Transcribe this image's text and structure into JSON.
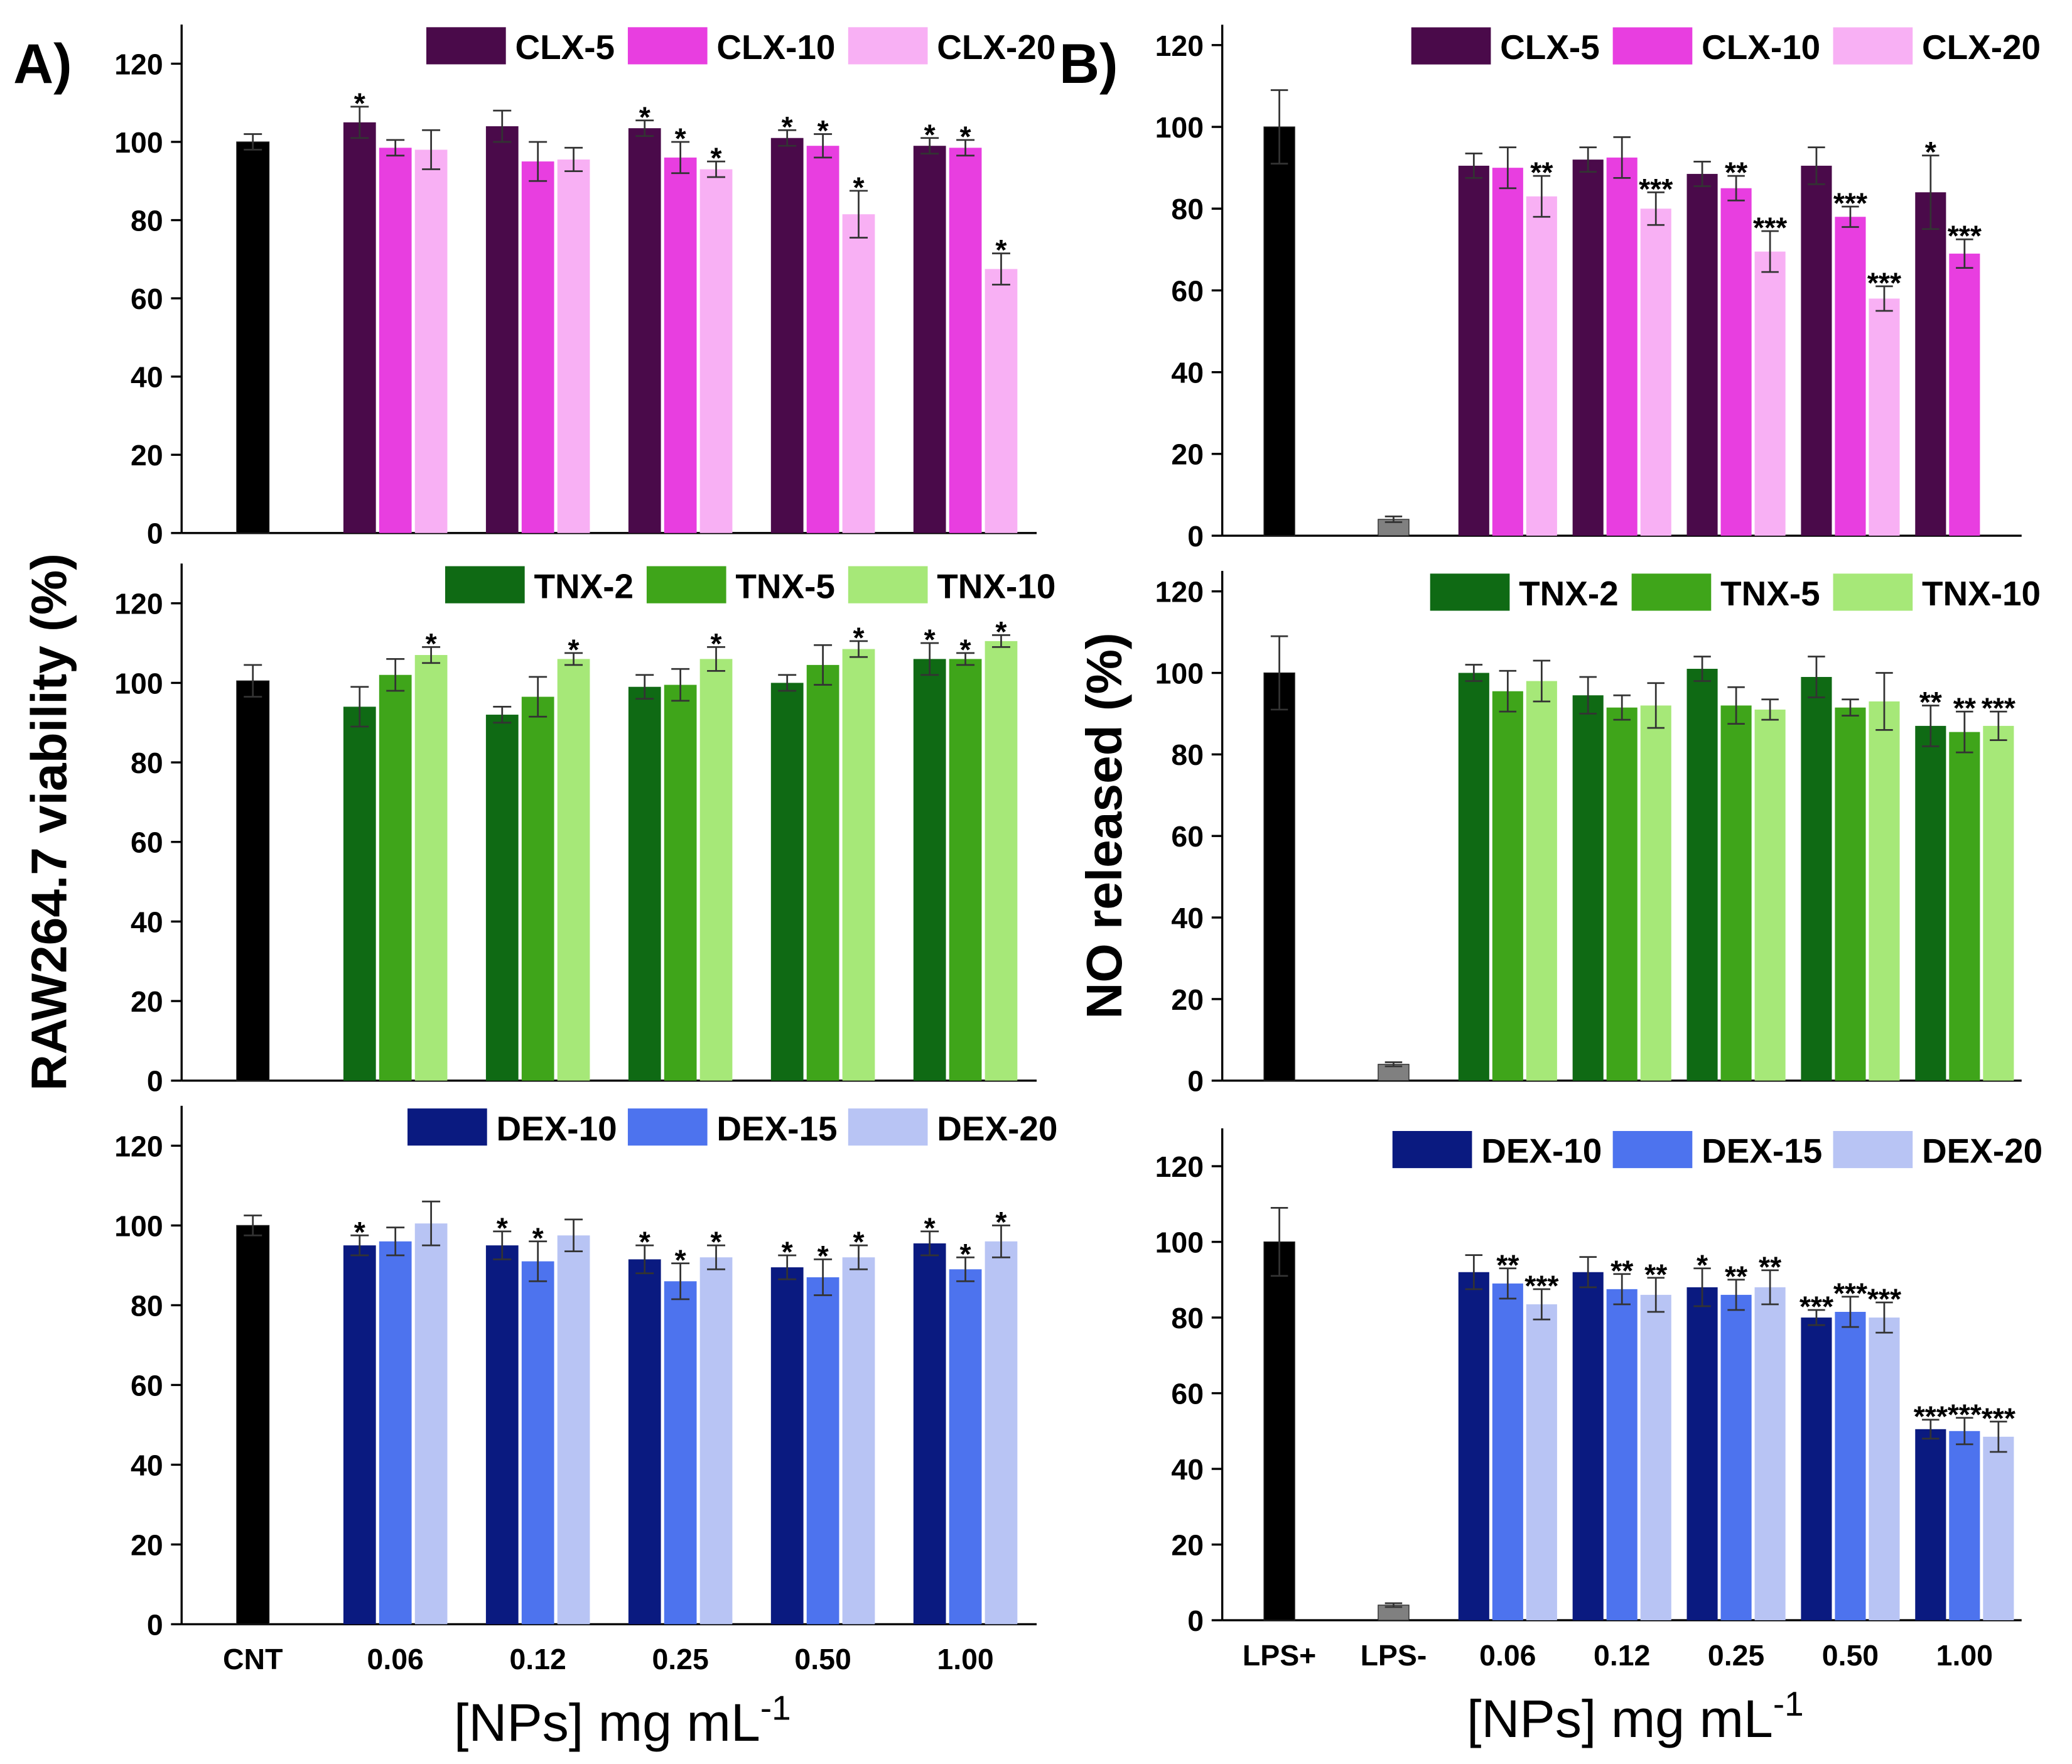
{
  "chart_data": [
    {
      "type": "bar",
      "panel_label": "A)",
      "ylim": [
        0,
        130
      ],
      "yticks": [
        0,
        20,
        40,
        60,
        80,
        100,
        120
      ],
      "legend": "top-right",
      "control": {
        "values": [
          100,
          null,
          null,
          null,
          null,
          null
        ],
        "errors": [
          2,
          null,
          null,
          null,
          null,
          null
        ],
        "colors": [
          "#000000",
          null,
          null,
          null,
          null,
          null
        ]
      },
      "series": [
        {
          "name": "CLX-5",
          "color": "#4a0a4a",
          "values": [
            null,
            105,
            104,
            103.5,
            101,
            99
          ],
          "errors": [
            null,
            4,
            4,
            2,
            2,
            2
          ],
          "sig": [
            null,
            "*",
            null,
            "*",
            "*",
            "*"
          ]
        },
        {
          "name": "CLX-10",
          "color": "#e83ee0",
          "values": [
            null,
            98.5,
            95,
            96,
            99,
            98.5
          ],
          "errors": [
            null,
            2,
            5,
            4,
            3,
            2
          ],
          "sig": [
            null,
            null,
            null,
            "*",
            "*",
            "*"
          ]
        },
        {
          "name": "CLX-20",
          "color": "#f8b0f4",
          "values": [
            null,
            98,
            95.5,
            93,
            81.5,
            67.5
          ],
          "errors": [
            null,
            5,
            3,
            2,
            6,
            4
          ],
          "sig": [
            null,
            null,
            null,
            "*",
            "*",
            "*"
          ]
        }
      ]
    },
    {
      "type": "bar",
      "ylabel": "RAW264.7 viability (%)",
      "ylim": [
        0,
        130
      ],
      "yticks": [
        0,
        20,
        40,
        60,
        80,
        100,
        120
      ],
      "legend": "top-right",
      "control": {
        "values": [
          100.5,
          null,
          null,
          null,
          null,
          null
        ],
        "errors": [
          4,
          null,
          null,
          null,
          null,
          null
        ],
        "colors": [
          "#000000",
          null,
          null,
          null,
          null,
          null
        ]
      },
      "series": [
        {
          "name": "TNX-2",
          "color": "#0f6a14",
          "values": [
            null,
            94,
            92,
            99,
            100,
            106
          ],
          "errors": [
            null,
            5,
            2,
            3,
            2,
            4
          ],
          "sig": [
            null,
            null,
            null,
            null,
            null,
            "*"
          ]
        },
        {
          "name": "TNX-5",
          "color": "#3fa51a",
          "values": [
            null,
            102,
            96.5,
            99.5,
            104.5,
            106
          ],
          "errors": [
            null,
            4,
            5,
            4,
            5,
            1.5
          ],
          "sig": [
            null,
            null,
            null,
            null,
            null,
            "*"
          ]
        },
        {
          "name": "TNX-10",
          "color": "#a6e878",
          "values": [
            null,
            107,
            106,
            106,
            108.5,
            110.5
          ],
          "errors": [
            null,
            2,
            1.5,
            3,
            2,
            1.5
          ],
          "sig": [
            null,
            "*",
            "*",
            "*",
            "*",
            "*"
          ]
        }
      ]
    },
    {
      "type": "bar",
      "xlabel": "[NPs] mg mL",
      "xlabel_sup": "-1",
      "categories": [
        "CNT",
        "0.06",
        "0.12",
        "0.25",
        "0.50",
        "1.00"
      ],
      "ylim": [
        0,
        130
      ],
      "yticks": [
        0,
        20,
        40,
        60,
        80,
        100,
        120
      ],
      "legend": "top-right",
      "control": {
        "values": [
          100,
          null,
          null,
          null,
          null,
          null
        ],
        "errors": [
          2.5,
          null,
          null,
          null,
          null,
          null
        ],
        "colors": [
          "#000000",
          null,
          null,
          null,
          null,
          null
        ]
      },
      "series": [
        {
          "name": "DEX-10",
          "color": "#0a1a80",
          "values": [
            null,
            95,
            95,
            91.5,
            89.5,
            95.5
          ],
          "errors": [
            null,
            2.5,
            3.5,
            3.5,
            3,
            3
          ],
          "sig": [
            null,
            "*",
            "*",
            "*",
            "*",
            "*"
          ]
        },
        {
          "name": "DEX-15",
          "color": "#4d73ee",
          "values": [
            null,
            96,
            91,
            86,
            87,
            89
          ],
          "errors": [
            null,
            3.5,
            5,
            4.5,
            4.5,
            3
          ],
          "sig": [
            null,
            null,
            "*",
            "*",
            "*",
            "*"
          ]
        },
        {
          "name": "DEX-20",
          "color": "#b8c4f4",
          "values": [
            null,
            100.5,
            97.5,
            92,
            92,
            96
          ],
          "errors": [
            null,
            5.5,
            4,
            3,
            3,
            4
          ],
          "sig": [
            null,
            null,
            null,
            "*",
            "*",
            "*"
          ]
        }
      ]
    },
    {
      "type": "bar",
      "panel_label": "B)",
      "ylim": [
        0,
        125
      ],
      "yticks": [
        0,
        20,
        40,
        60,
        80,
        100,
        120
      ],
      "legend": "top-right",
      "control": {
        "values": [
          100,
          4,
          null,
          null,
          null,
          null,
          null
        ],
        "errors": [
          9,
          0.7,
          null,
          null,
          null,
          null,
          null
        ],
        "colors": [
          "#000000",
          "#808080",
          null,
          null,
          null,
          null,
          null
        ]
      },
      "series": [
        {
          "name": "CLX-5",
          "color": "#4a0a4a",
          "values": [
            null,
            null,
            90.5,
            92,
            88.5,
            90.5,
            84
          ],
          "errors": [
            null,
            null,
            3,
            3,
            3,
            4.5,
            9
          ],
          "sig": [
            null,
            null,
            null,
            null,
            null,
            null,
            "*"
          ]
        },
        {
          "name": "CLX-10",
          "color": "#e83ee0",
          "values": [
            null,
            null,
            90,
            92.5,
            85,
            78,
            69
          ],
          "errors": [
            null,
            null,
            5,
            5,
            3,
            2.5,
            3.5
          ],
          "sig": [
            null,
            null,
            null,
            null,
            "**",
            "***",
            "***"
          ]
        },
        {
          "name": "CLX-20",
          "color": "#f8b0f4",
          "values": [
            null,
            null,
            83,
            80,
            69.5,
            58,
            null
          ],
          "errors": [
            null,
            null,
            5,
            4,
            5,
            3,
            null
          ],
          "sig": [
            null,
            null,
            "**",
            "***",
            "***",
            "***",
            null
          ]
        }
      ]
    },
    {
      "type": "bar",
      "ylabel": "NO released (%)",
      "ylim": [
        0,
        125
      ],
      "yticks": [
        0,
        20,
        40,
        60,
        80,
        100,
        120
      ],
      "legend": "top-right",
      "control": {
        "values": [
          100,
          4,
          null,
          null,
          null,
          null,
          null
        ],
        "errors": [
          9,
          0.5,
          null,
          null,
          null,
          null,
          null
        ],
        "colors": [
          "#000000",
          "#808080",
          null,
          null,
          null,
          null,
          null
        ]
      },
      "series": [
        {
          "name": "TNX-2",
          "color": "#0f6a14",
          "values": [
            null,
            null,
            100,
            94.5,
            101,
            99,
            87
          ],
          "errors": [
            null,
            null,
            2,
            4.5,
            3,
            5,
            5
          ],
          "sig": [
            null,
            null,
            null,
            null,
            null,
            null,
            "**"
          ]
        },
        {
          "name": "TNX-5",
          "color": "#3fa51a",
          "values": [
            null,
            null,
            95.5,
            91.5,
            92,
            91.5,
            85.5
          ],
          "errors": [
            null,
            null,
            5,
            3,
            4.5,
            2,
            5
          ],
          "sig": [
            null,
            null,
            null,
            null,
            null,
            null,
            "**"
          ]
        },
        {
          "name": "TNX-10",
          "color": "#a6e878",
          "values": [
            null,
            null,
            98,
            92,
            91,
            93,
            87
          ],
          "errors": [
            null,
            null,
            5,
            5.5,
            2.5,
            7,
            3.5
          ],
          "sig": [
            null,
            null,
            null,
            null,
            null,
            null,
            "***"
          ]
        }
      ]
    },
    {
      "type": "bar",
      "xlabel": "[NPs] mg mL",
      "xlabel_sup": "-1",
      "categories": [
        "LPS+",
        "LPS-",
        "0.06",
        "0.12",
        "0.25",
        "0.50",
        "1.00"
      ],
      "ylim": [
        0,
        130
      ],
      "yticks": [
        0,
        20,
        40,
        60,
        80,
        100,
        120
      ],
      "legend": "top-right",
      "control": {
        "values": [
          100,
          4,
          null,
          null,
          null,
          null,
          null
        ],
        "errors": [
          9,
          0.5,
          null,
          null,
          null,
          null,
          null
        ],
        "colors": [
          "#000000",
          "#808080",
          null,
          null,
          null,
          null,
          null
        ]
      },
      "series": [
        {
          "name": "DEX-10",
          "color": "#0a1a80",
          "values": [
            null,
            null,
            92,
            92,
            88,
            80,
            50.5
          ],
          "errors": [
            null,
            null,
            4.5,
            4,
            5,
            2,
            2.5
          ],
          "sig": [
            null,
            null,
            null,
            null,
            "*",
            "***",
            "***"
          ]
        },
        {
          "name": "DEX-15",
          "color": "#4d73ee",
          "values": [
            null,
            null,
            89,
            87.5,
            86,
            81.5,
            50
          ],
          "errors": [
            null,
            null,
            4,
            4,
            4,
            4,
            3.5
          ],
          "sig": [
            null,
            null,
            "**",
            "**",
            "**",
            "***",
            "***"
          ]
        },
        {
          "name": "DEX-20",
          "color": "#b8c4f4",
          "values": [
            null,
            null,
            83.5,
            86,
            88,
            80,
            48.5
          ],
          "errors": [
            null,
            null,
            4,
            4.5,
            4.5,
            4,
            4
          ],
          "sig": [
            null,
            null,
            "***",
            "**",
            "**",
            "***",
            "***"
          ]
        }
      ]
    }
  ]
}
